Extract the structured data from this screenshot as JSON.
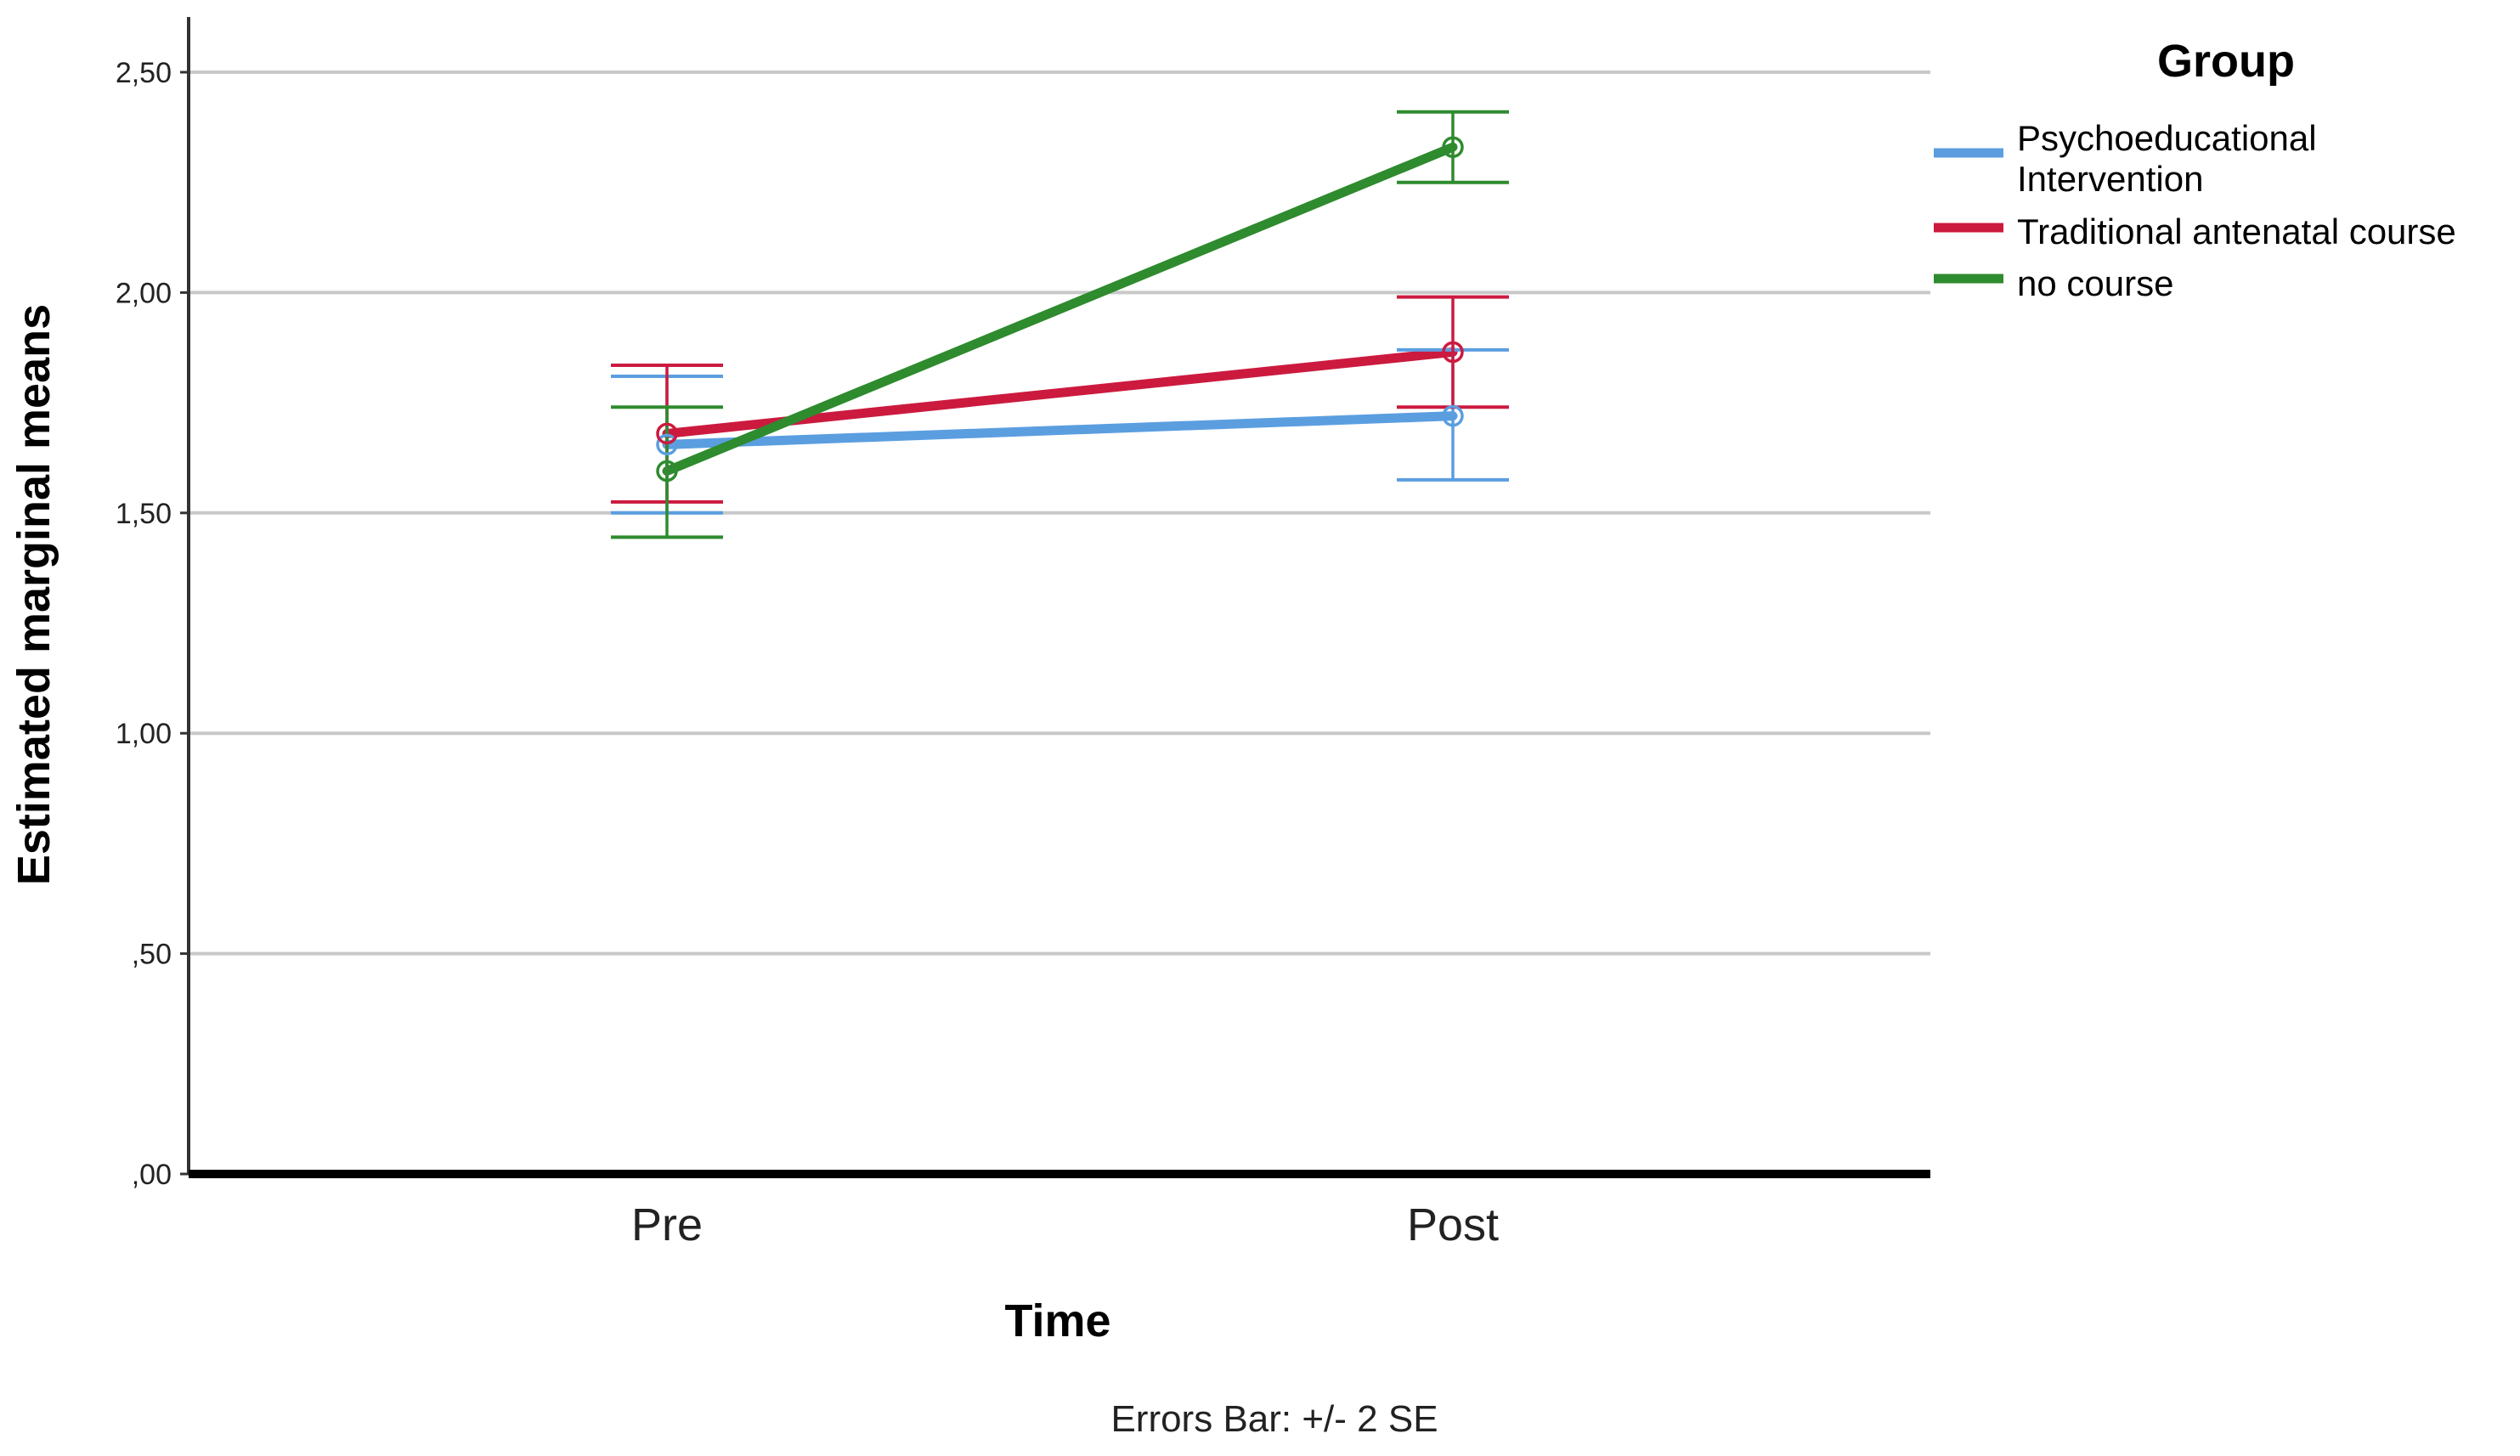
{
  "chart_data": {
    "type": "line",
    "title": "",
    "xlabel": "Time",
    "ylabel": "Estimated marginal means",
    "categories": [
      "Pre",
      "Post"
    ],
    "ylim": [
      0,
      2.6
    ],
    "yticks": [
      0,
      0.5,
      1.0,
      1.5,
      2.0,
      2.5
    ],
    "ytick_labels": [
      ",00",
      ",50",
      "1,00",
      "1,50",
      "2,00",
      "2,50"
    ],
    "grid": true,
    "legend": {
      "title": "Group",
      "placement": "right"
    },
    "series": [
      {
        "name": "Psychoeducational Intervention",
        "legend_lines": [
          "Psychoeducational",
          "Intervention"
        ],
        "color": "#5b9ee0",
        "values": [
          1.655,
          1.72
        ],
        "error_low": [
          1.5,
          1.575
        ],
        "error_high": [
          1.81,
          1.87
        ]
      },
      {
        "name": "Traditional antenatal course",
        "legend_lines": [
          "Traditional antenatal course"
        ],
        "color": "#cc1a3f",
        "values": [
          1.68,
          1.865
        ],
        "error_low": [
          1.525,
          1.74
        ],
        "error_high": [
          1.835,
          1.99
        ]
      },
      {
        "name": " no course",
        "legend_lines": [
          " no course"
        ],
        "color": "#2e8b2e",
        "values": [
          1.595,
          2.33
        ],
        "error_low": [
          1.445,
          2.25
        ],
        "error_high": [
          1.74,
          2.41
        ]
      }
    ],
    "footnote": "Errors Bar: +/- 2 SE"
  }
}
